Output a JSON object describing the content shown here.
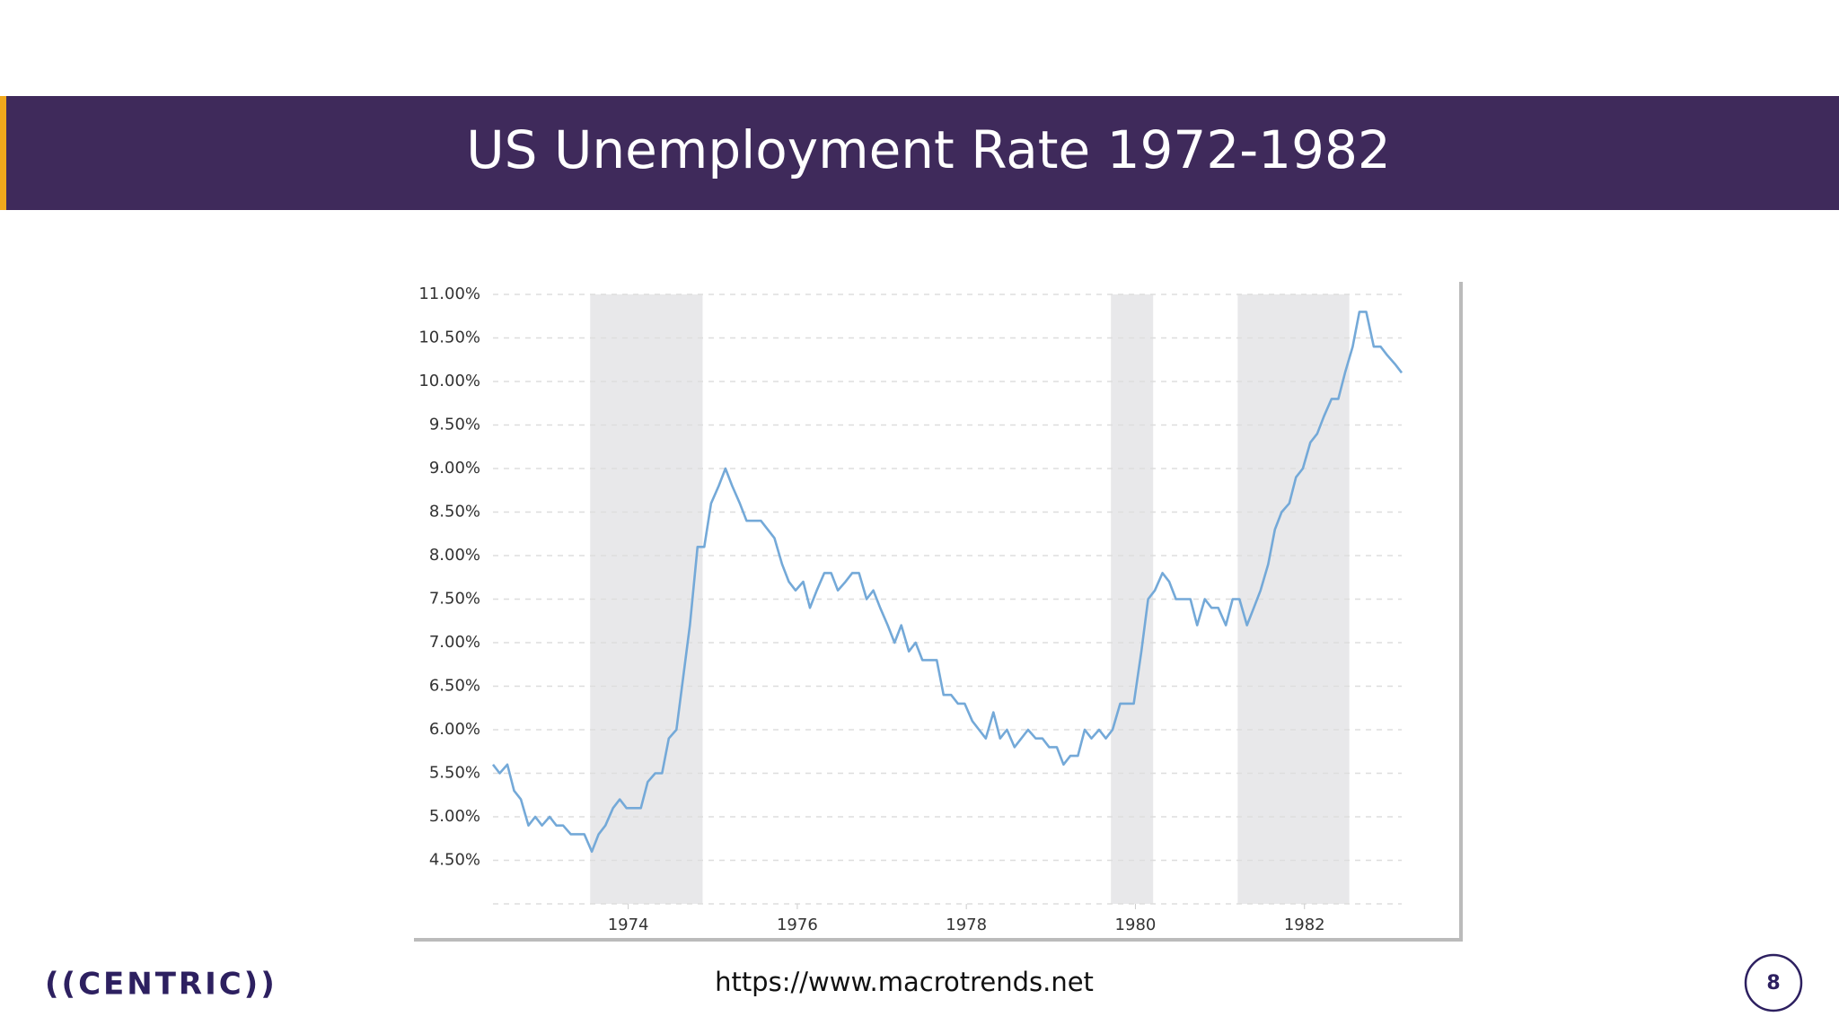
{
  "slide": {
    "title": "US Unemployment Rate 1972-1982",
    "source": "https://www.macrotrends.net",
    "logo": "((CENTRIC))",
    "page_number": "8"
  },
  "chart_data": {
    "type": "line",
    "color": "#74a9d8",
    "grid": true,
    "x": [
      1972.4,
      1972.48,
      1972.57,
      1972.65,
      1972.73,
      1972.82,
      1972.9,
      1972.98,
      1973.07,
      1973.15,
      1973.23,
      1973.32,
      1973.4,
      1973.48,
      1973.57,
      1973.65,
      1973.73,
      1973.82,
      1973.9,
      1973.98,
      1974.07,
      1974.15,
      1974.23,
      1974.32,
      1974.4,
      1974.48,
      1974.57,
      1974.65,
      1974.73,
      1974.82,
      1974.9,
      1974.98,
      1975.07,
      1975.15,
      1975.23,
      1975.32,
      1975.4,
      1975.48,
      1975.57,
      1975.65,
      1975.73,
      1975.82,
      1975.9,
      1975.98,
      1976.07,
      1976.15,
      1976.23,
      1976.32,
      1976.4,
      1976.48,
      1976.57,
      1976.65,
      1976.73,
      1976.82,
      1976.9,
      1976.98,
      1977.07,
      1977.15,
      1977.23,
      1977.32,
      1977.4,
      1977.48,
      1977.57,
      1977.65,
      1977.73,
      1977.82,
      1977.9,
      1977.98,
      1978.07,
      1978.15,
      1978.23,
      1978.32,
      1978.4,
      1978.48,
      1978.57,
      1978.65,
      1978.73,
      1978.82,
      1978.9,
      1978.98,
      1979.07,
      1979.15,
      1979.23,
      1979.32,
      1979.4,
      1979.48,
      1979.57,
      1979.65,
      1979.73,
      1979.82,
      1979.9,
      1979.98,
      1980.07,
      1980.15,
      1980.23,
      1980.32,
      1980.4,
      1980.48,
      1980.57,
      1980.65,
      1980.73,
      1980.82,
      1980.9,
      1980.98,
      1981.07,
      1981.15,
      1981.23,
      1981.32,
      1981.4,
      1981.48,
      1981.57,
      1981.65,
      1981.73,
      1981.82,
      1981.9,
      1981.98,
      1982.07,
      1982.15,
      1982.23,
      1982.32,
      1982.4,
      1982.48,
      1982.57,
      1982.65,
      1982.73,
      1982.82,
      1982.9,
      1982.98,
      1983.07,
      1983.15
    ],
    "values": [
      5.6,
      5.5,
      5.6,
      5.3,
      5.2,
      4.9,
      5.0,
      4.9,
      5.0,
      4.9,
      4.9,
      4.8,
      4.8,
      4.8,
      4.6,
      4.8,
      4.9,
      5.1,
      5.2,
      5.1,
      5.1,
      5.1,
      5.4,
      5.5,
      5.5,
      5.9,
      6.0,
      6.6,
      7.2,
      8.1,
      8.1,
      8.6,
      8.8,
      9.0,
      8.8,
      8.6,
      8.4,
      8.4,
      8.4,
      8.3,
      8.2,
      7.9,
      7.7,
      7.6,
      7.7,
      7.4,
      7.6,
      7.8,
      7.8,
      7.6,
      7.7,
      7.8,
      7.8,
      7.5,
      7.6,
      7.4,
      7.2,
      7.0,
      7.2,
      6.9,
      7.0,
      6.8,
      6.8,
      6.8,
      6.4,
      6.4,
      6.3,
      6.3,
      6.1,
      6.0,
      5.9,
      6.2,
      5.9,
      6.0,
      5.8,
      5.9,
      6.0,
      5.9,
      5.9,
      5.8,
      5.8,
      5.6,
      5.7,
      5.7,
      6.0,
      5.9,
      6.0,
      5.9,
      6.0,
      6.3,
      6.3,
      6.3,
      6.9,
      7.5,
      7.6,
      7.8,
      7.7,
      7.5,
      7.5,
      7.5,
      7.2,
      7.5,
      7.4,
      7.4,
      7.2,
      7.5,
      7.5,
      7.2,
      7.4,
      7.6,
      7.9,
      8.3,
      8.5,
      8.6,
      8.9,
      9.0,
      9.3,
      9.4,
      9.6,
      9.8,
      9.8,
      10.1,
      10.4,
      10.8,
      10.8,
      10.4,
      10.4,
      10.3,
      10.2,
      10.1
    ],
    "recessions": [
      [
        1973.55,
        1974.88
      ],
      [
        1979.71,
        1980.21
      ],
      [
        1981.21,
        1982.53
      ]
    ],
    "xlim": [
      1972.4,
      1983.15
    ],
    "xticks": [
      1974,
      1976,
      1978,
      1980,
      1982
    ],
    "ylim": [
      4.0,
      11.0
    ],
    "yticks": [
      {
        "value": 4.5,
        "label": "4.50%"
      },
      {
        "value": 5.0,
        "label": "5.00%"
      },
      {
        "value": 5.5,
        "label": "5.50%"
      },
      {
        "value": 6.0,
        "label": "6.00%"
      },
      {
        "value": 6.5,
        "label": "6.50%"
      },
      {
        "value": 7.0,
        "label": "7.00%"
      },
      {
        "value": 7.5,
        "label": "7.50%"
      },
      {
        "value": 8.0,
        "label": "8.00%"
      },
      {
        "value": 8.5,
        "label": "8.50%"
      },
      {
        "value": 9.0,
        "label": "9.00%"
      },
      {
        "value": 9.5,
        "label": "9.50%"
      },
      {
        "value": 10.0,
        "label": "10.00%"
      },
      {
        "value": 10.5,
        "label": "10.50%"
      },
      {
        "value": 11.0,
        "label": "11.00%"
      }
    ]
  }
}
